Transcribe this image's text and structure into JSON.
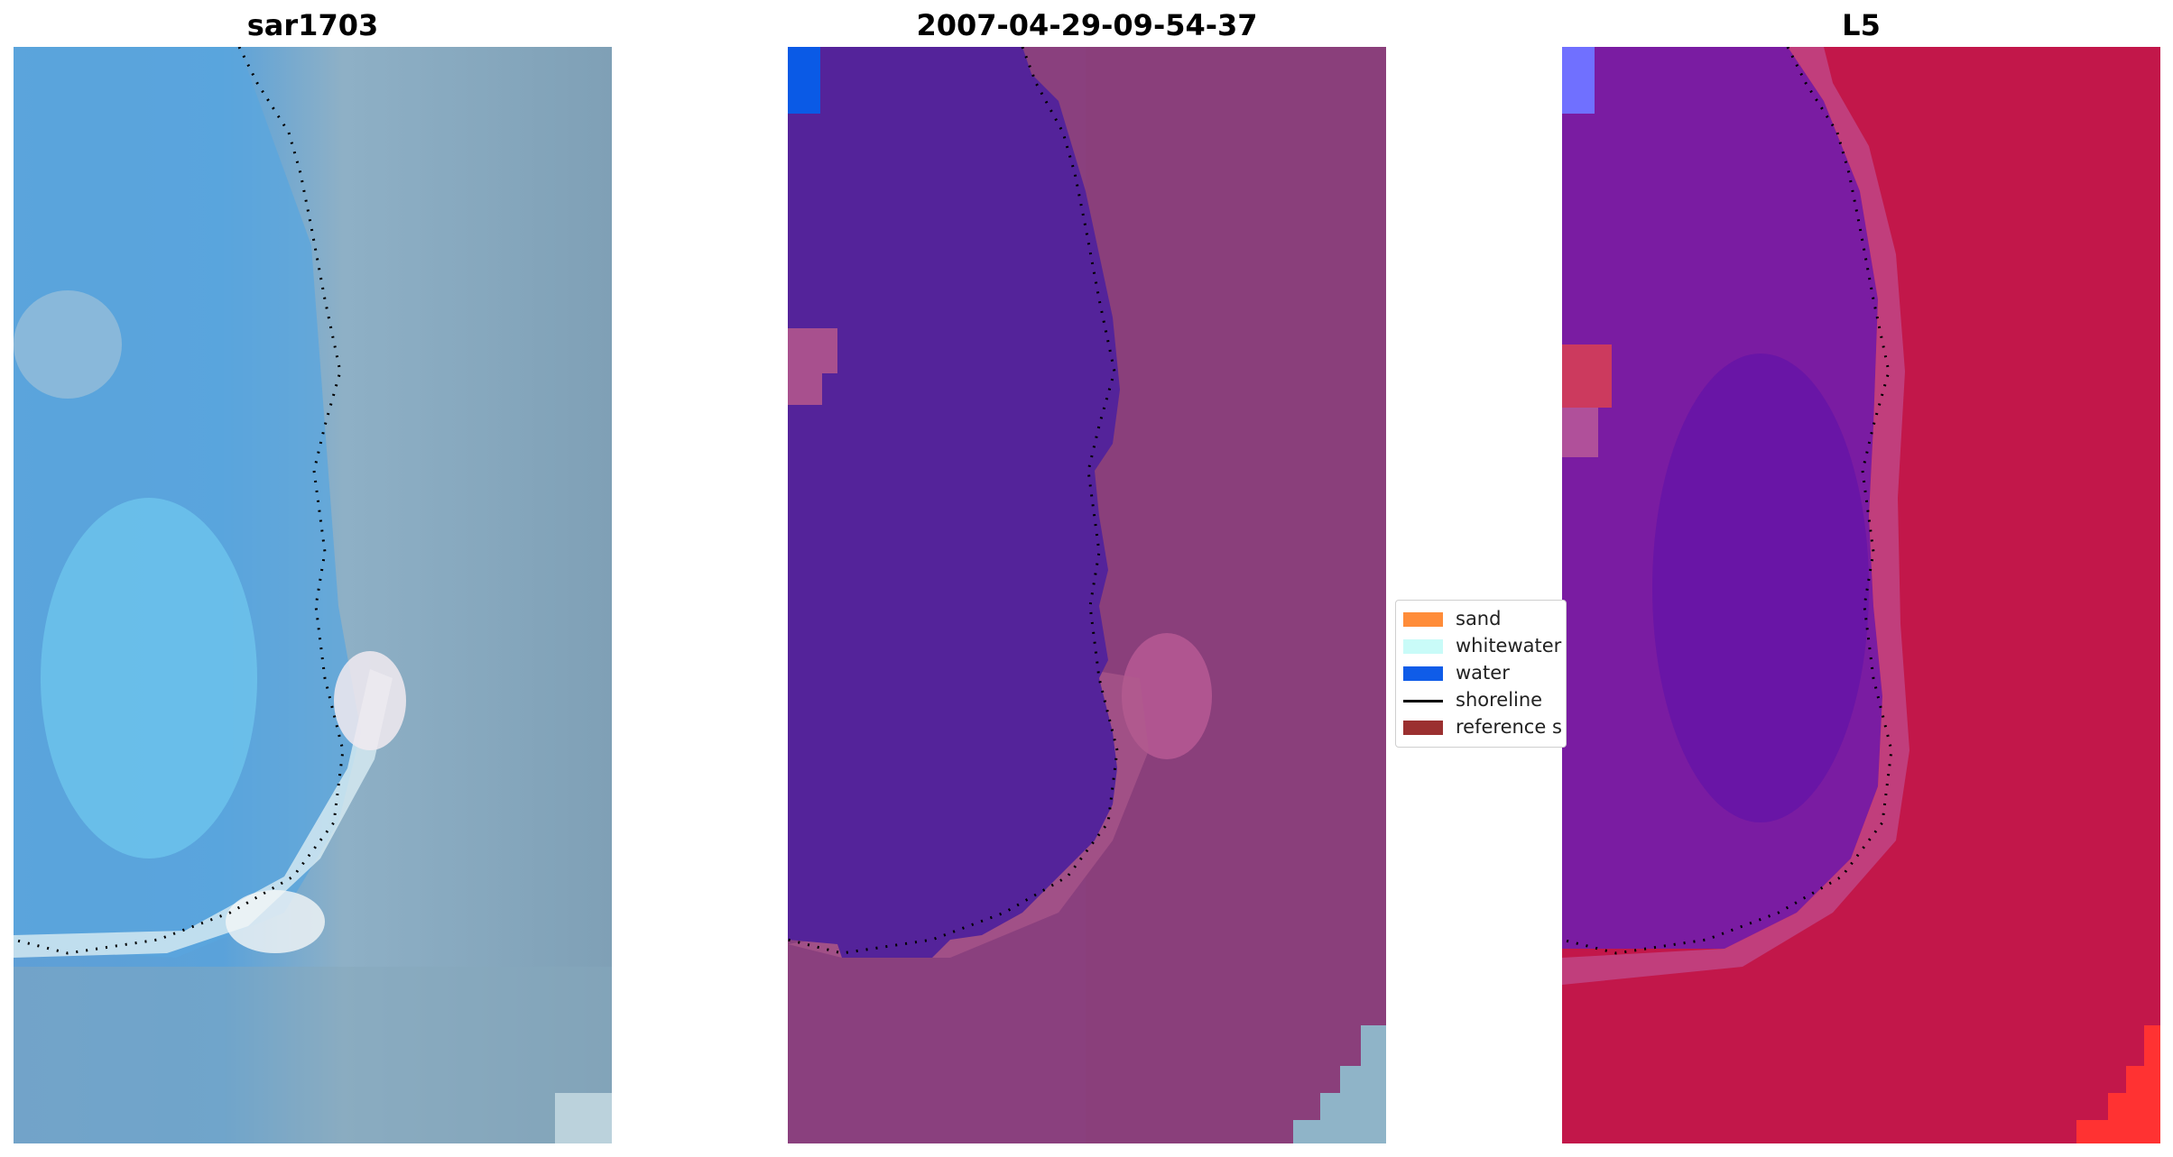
{
  "panels": [
    {
      "title": "sar1703",
      "name": "panel-rgb-image",
      "style": "rgb"
    },
    {
      "title": "2007-04-29-09-54-37",
      "name": "panel-classified-image",
      "style": "class"
    },
    {
      "title": "L5",
      "name": "panel-index-image",
      "style": "index"
    }
  ],
  "legend": {
    "items": [
      {
        "label": "sand",
        "color": "#ff8c39",
        "kind": "patch"
      },
      {
        "label": "whitewater",
        "color": "#c9fbf8",
        "kind": "patch"
      },
      {
        "label": "water",
        "color": "#0f5ce8",
        "kind": "patch"
      },
      {
        "label": "shoreline",
        "color": "#000000",
        "kind": "line"
      },
      {
        "label": "reference s",
        "color": "#9b3030",
        "kind": "patch"
      }
    ]
  },
  "colors": {
    "rgb_water": "#5aa8dc",
    "rgb_land": "#7f9fb8",
    "rgb_surf": "#e6f4f6",
    "class_water": "#54239a",
    "class_land": "#8a3e7c",
    "class_water_patch": "#0a5ae6",
    "index_water": "#6c16b0",
    "index_land": "#c41644",
    "index_bright": "#ff3030",
    "shoreline": "#000000"
  }
}
